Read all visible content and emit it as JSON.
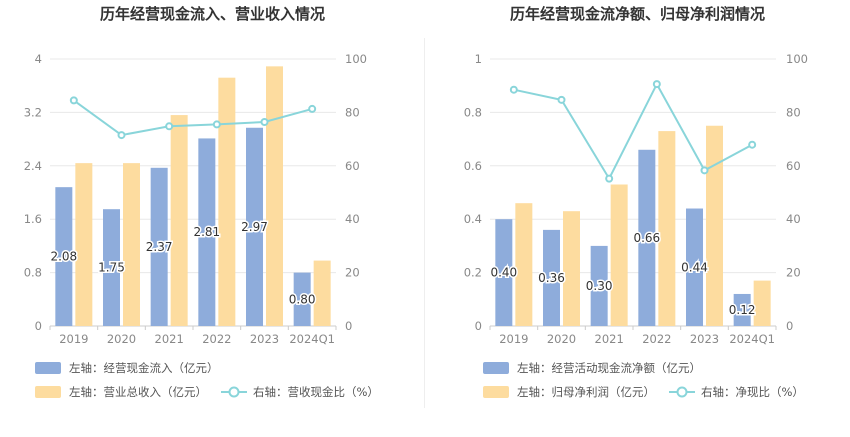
{
  "colors": {
    "bar1": "#8eacdb",
    "bar2": "#fddc9f",
    "line": "#89d5da",
    "grid": "#e8e8e8",
    "axis_text": "#888888"
  },
  "chart_data": [
    {
      "type": "bar",
      "title": "历年经营现金流入、营业收入情况",
      "categories": [
        "2019",
        "2020",
        "2021",
        "2022",
        "2023",
        "2024Q1"
      ],
      "left_axis": {
        "ticks": [
          "0",
          "0.8",
          "1.6",
          "2.4",
          "3.2",
          "4"
        ],
        "min": 0,
        "max": 4
      },
      "right_axis": {
        "ticks": [
          "0",
          "20",
          "40",
          "60",
          "80",
          "100"
        ],
        "min": 0,
        "max": 100
      },
      "series": [
        {
          "name": "左轴：经营现金流入（亿元）",
          "axis": "left",
          "kind": "bar",
          "values": [
            2.08,
            1.75,
            2.37,
            2.81,
            2.97,
            0.8
          ],
          "labels": [
            "2.08",
            "1.75",
            "2.37",
            "2.81",
            "2.97",
            "0.80"
          ]
        },
        {
          "name": "左轴：营业总收入（亿元）",
          "axis": "left",
          "kind": "bar",
          "values": [
            2.44,
            2.44,
            3.16,
            3.72,
            3.89,
            0.98
          ]
        },
        {
          "name": "右轴：营收现金比（%）",
          "axis": "right",
          "kind": "line",
          "values": [
            84.5,
            71.5,
            74.8,
            75.5,
            76.4,
            81.3
          ]
        }
      ],
      "legend": {
        "row1": [
          "左轴：经营现金流入（亿元）"
        ],
        "row2": [
          "左轴：营业总收入（亿元）",
          "右轴：营收现金比（%）"
        ]
      }
    },
    {
      "type": "bar",
      "title": "历年经营现金流净额、归母净利润情况",
      "categories": [
        "2019",
        "2020",
        "2021",
        "2022",
        "2023",
        "2024Q1"
      ],
      "left_axis": {
        "ticks": [
          "0",
          "0.2",
          "0.4",
          "0.6",
          "0.8",
          "1"
        ],
        "min": 0,
        "max": 1
      },
      "right_axis": {
        "ticks": [
          "0",
          "20",
          "40",
          "60",
          "80",
          "100"
        ],
        "min": 0,
        "max": 100
      },
      "series": [
        {
          "name": "左轴：经营活动现金流净额（亿元）",
          "axis": "left",
          "kind": "bar",
          "values": [
            0.4,
            0.36,
            0.3,
            0.66,
            0.44,
            0.12
          ],
          "labels": [
            "0.40",
            "0.36",
            "0.30",
            "0.66",
            "0.44",
            "0.12"
          ]
        },
        {
          "name": "左轴：归母净利润（亿元）",
          "axis": "left",
          "kind": "bar",
          "values": [
            0.46,
            0.43,
            0.53,
            0.73,
            0.75,
            0.17
          ]
        },
        {
          "name": "右轴：净现比（%）",
          "axis": "right",
          "kind": "line",
          "values": [
            88.5,
            84.7,
            55.2,
            90.6,
            58.3,
            67.9
          ]
        }
      ],
      "legend": {
        "row1": [
          "左轴：经营活动现金流净额（亿元）"
        ],
        "row2": [
          "左轴：归母净利润（亿元）",
          "右轴：净现比（%）"
        ]
      }
    }
  ]
}
